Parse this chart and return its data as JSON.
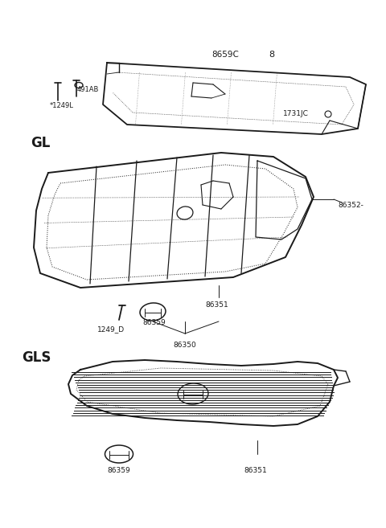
{
  "bg_color": "#ffffff",
  "line_color": "#1a1a1a",
  "figsize": [
    4.8,
    6.57
  ],
  "dpi": 100,
  "top_bar": {
    "label": "8659C",
    "label2": "8",
    "label_1731": "1731JC",
    "label_1249": "*1249L",
    "label_491": "491AB"
  },
  "gl_grille": {
    "label_gl": "GL",
    "label_86352": "86352-",
    "label_86351": "86351",
    "label_86359": "86359",
    "label_1249d": "1249_D",
    "label_86350": "86350"
  },
  "gls_grille": {
    "label_gls": "GLS",
    "label_86359": "86359",
    "label_86351": "86351"
  }
}
